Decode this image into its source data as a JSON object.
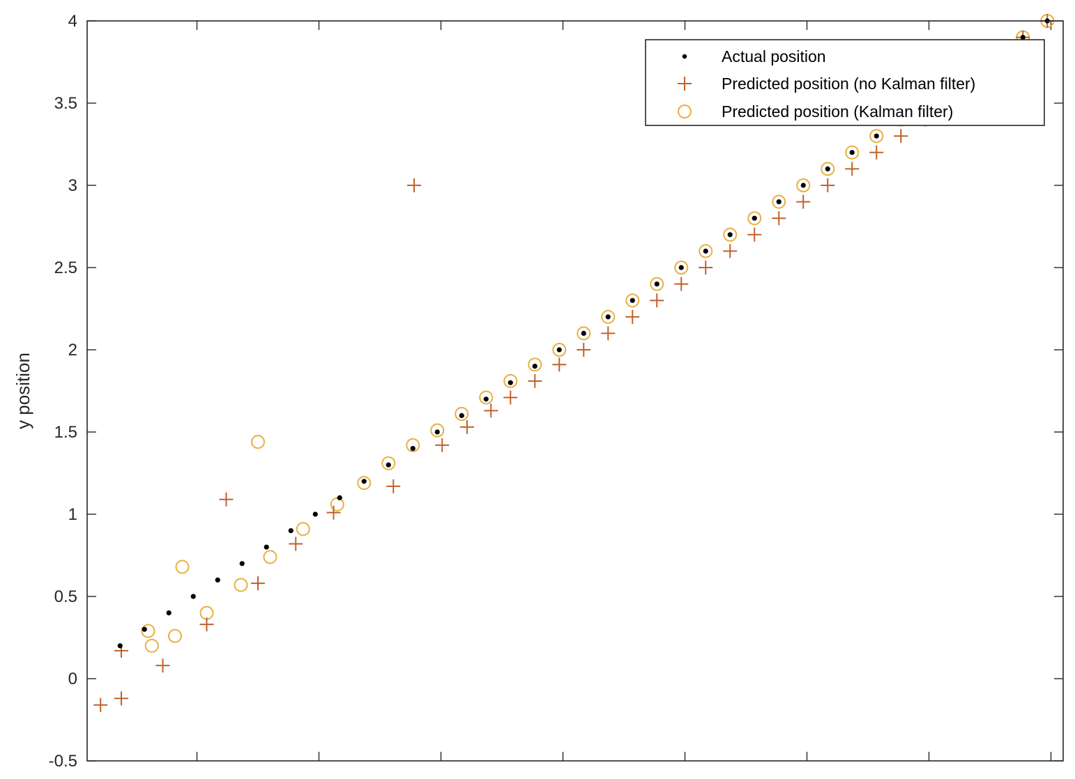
{
  "chart_data": {
    "type": "scatter",
    "title": "",
    "xlabel": "",
    "ylabel": "y position",
    "xlim": [
      -0.2,
      3.8
    ],
    "ylim": [
      -0.5,
      4
    ],
    "yticks": [
      -0.5,
      0,
      0.5,
      1,
      1.5,
      2,
      2.5,
      3,
      3.5,
      4
    ],
    "ytick_labels": [
      "-0.5",
      "0",
      "0.5",
      "1",
      "1.5",
      "2",
      "2.5",
      "3",
      "3.5",
      "4"
    ],
    "xticks": [
      0.25,
      0.75,
      1.25,
      1.75,
      2.25,
      2.75,
      3.25,
      3.75
    ],
    "xtick_labels": [],
    "grid": false,
    "legend_position": "top-right",
    "colors": {
      "actual": "#000000",
      "no_kalman": "#c0602b",
      "kalman": "#e8b040",
      "axis": "#262626"
    },
    "series": [
      {
        "name": "Actual position",
        "marker": "dot",
        "x": [
          -0.065,
          0.035,
          0.135,
          0.235,
          0.335,
          0.435,
          0.535,
          0.635,
          0.735,
          0.835,
          0.935,
          1.035,
          1.135,
          1.235,
          1.335,
          1.435,
          1.535,
          1.635,
          1.735,
          1.835,
          1.935,
          2.035,
          2.135,
          2.235,
          2.335,
          2.435,
          2.535,
          2.635,
          2.735,
          2.835,
          2.935,
          3.035,
          3.135,
          3.235,
          3.335,
          3.435,
          3.535,
          3.635,
          3.735
        ],
        "y": [
          0.2,
          0.3,
          0.4,
          0.5,
          0.6,
          0.7,
          0.8,
          0.9,
          1.0,
          1.1,
          1.2,
          1.3,
          1.4,
          1.5,
          1.6,
          1.7,
          1.8,
          1.9,
          2.0,
          2.1,
          2.2,
          2.3,
          2.4,
          2.5,
          2.6,
          2.7,
          2.8,
          2.9,
          3.0,
          3.1,
          3.2,
          3.3,
          3.4,
          3.5,
          3.6,
          3.7,
          3.8,
          3.9,
          4.0
        ]
      },
      {
        "name": "Predicted position (no Kalman filter)",
        "marker": "plus",
        "x": [
          -0.145,
          -0.06,
          -0.06,
          0.11,
          0.29,
          0.37,
          0.5,
          0.655,
          0.81,
          1.055,
          1.14,
          1.255,
          1.357,
          1.455,
          1.535,
          1.635,
          1.735,
          1.835,
          1.935,
          2.035,
          2.135,
          2.235,
          2.335,
          2.435,
          2.535,
          2.635,
          2.735,
          2.835,
          2.935,
          3.035,
          3.135,
          3.235,
          3.335,
          3.435,
          3.535,
          3.635,
          3.735
        ],
        "y": [
          -0.16,
          -0.12,
          0.17,
          0.08,
          0.33,
          1.09,
          0.58,
          0.82,
          1.01,
          1.17,
          3.0,
          1.42,
          1.53,
          1.63,
          1.71,
          1.81,
          1.91,
          2.0,
          2.1,
          2.2,
          2.3,
          2.4,
          2.5,
          2.6,
          2.7,
          2.8,
          2.9,
          3.0,
          3.1,
          3.2,
          3.3,
          3.4,
          3.5,
          3.6,
          3.7,
          3.9,
          4.0
        ]
      },
      {
        "name": "Predicted position (Kalman filter)",
        "marker": "circle",
        "x": [
          0.05,
          0.065,
          0.16,
          0.19,
          0.29,
          0.43,
          0.5,
          0.55,
          0.685,
          0.825,
          0.935,
          1.035,
          1.135,
          1.235,
          1.335,
          1.435,
          1.535,
          1.635,
          1.735,
          1.835,
          1.935,
          2.035,
          2.135,
          2.235,
          2.335,
          2.435,
          2.535,
          2.635,
          2.735,
          2.835,
          2.935,
          3.035,
          3.135,
          3.635,
          3.735
        ],
        "y": [
          0.29,
          0.2,
          0.26,
          0.68,
          0.4,
          0.57,
          1.44,
          0.74,
          0.91,
          1.06,
          1.19,
          1.31,
          1.42,
          1.51,
          1.61,
          1.71,
          1.81,
          1.91,
          2.0,
          2.1,
          2.2,
          2.3,
          2.4,
          2.5,
          2.6,
          2.7,
          2.8,
          2.9,
          3.0,
          3.1,
          3.2,
          3.3,
          3.4,
          3.9,
          4.0
        ]
      }
    ]
  }
}
